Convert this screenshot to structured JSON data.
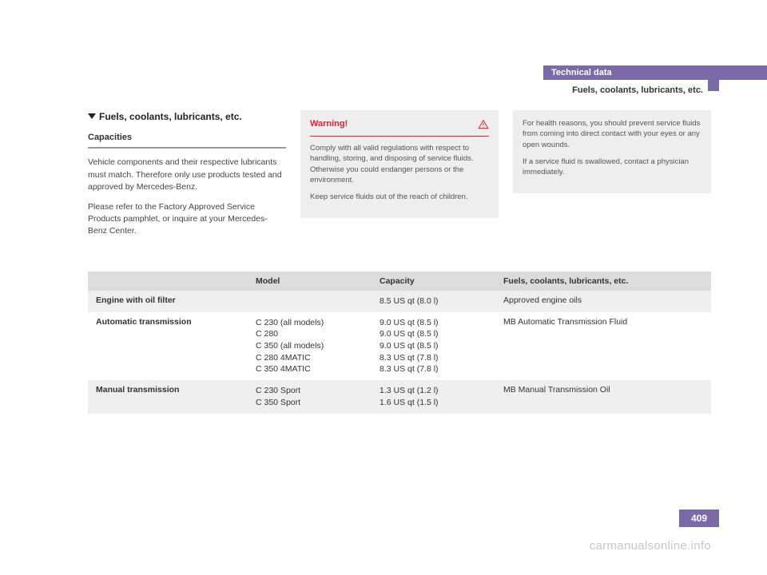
{
  "header": {
    "band": "Technical data",
    "sub": "Fuels, coolants, lubricants, etc."
  },
  "colors": {
    "accent": "#7a6aa8",
    "warn": "#d23",
    "box_bg": "#eeeeee",
    "thead_bg": "#dcdcdc",
    "alt_bg": "#efefef",
    "text": "#333333",
    "muted": "#555555",
    "watermark": "#c8c8c8"
  },
  "section": {
    "title": "Fuels, coolants, lubricants, etc.",
    "subhead": "Capacities",
    "para1": "Vehicle components and their respective lubricants must match. Therefore only use products tested and approved by Mercedes-Benz.",
    "para2": "Please refer to the Factory Approved Service Products pamphlet, or inquire at your Mercedes-Benz Center."
  },
  "warning": {
    "title": "Warning!",
    "p1": "Comply with all valid regulations with respect to handling, storing, and disposing of service fluids. Otherwise you could endanger persons or the environment.",
    "p2": "Keep service fluids out of the reach of children."
  },
  "info": {
    "p1": "For health reasons, you should prevent service fluids from coming into direct contact with your eyes or any open wounds.",
    "p2": "If a service fluid is swallowed, contact a physician immediately."
  },
  "table": {
    "columns": [
      "",
      "Model",
      "Capacity",
      "Fuels, coolants, lubricants, etc."
    ],
    "rows": [
      {
        "label": "Engine with oil filter",
        "model": "",
        "capacity": "8.5 US qt (8.0 l)",
        "fluid": "Approved engine oils",
        "alt": true
      },
      {
        "label": "Automatic transmission",
        "model": "C 230 (all models)\nC 280\nC 350 (all models)\nC 280 4MATIC\nC 350 4MATIC",
        "capacity": "9.0 US qt (8.5 l)\n9.0 US qt (8.5 l)\n9.0 US qt (8.5 l)\n8.3 US qt (7.8 l)\n8.3 US qt (7.8 l)",
        "fluid": "MB Automatic Transmission Fluid",
        "alt": false
      },
      {
        "label": "Manual transmission",
        "model": "C 230 Sport\nC 350 Sport",
        "capacity": "1.3 US qt (1.2 l)\n1.6 US qt (1.5 l)",
        "fluid": "MB Manual Transmission Oil",
        "alt": true
      }
    ]
  },
  "page_number": "409",
  "watermark": "carmanualsonline.info"
}
